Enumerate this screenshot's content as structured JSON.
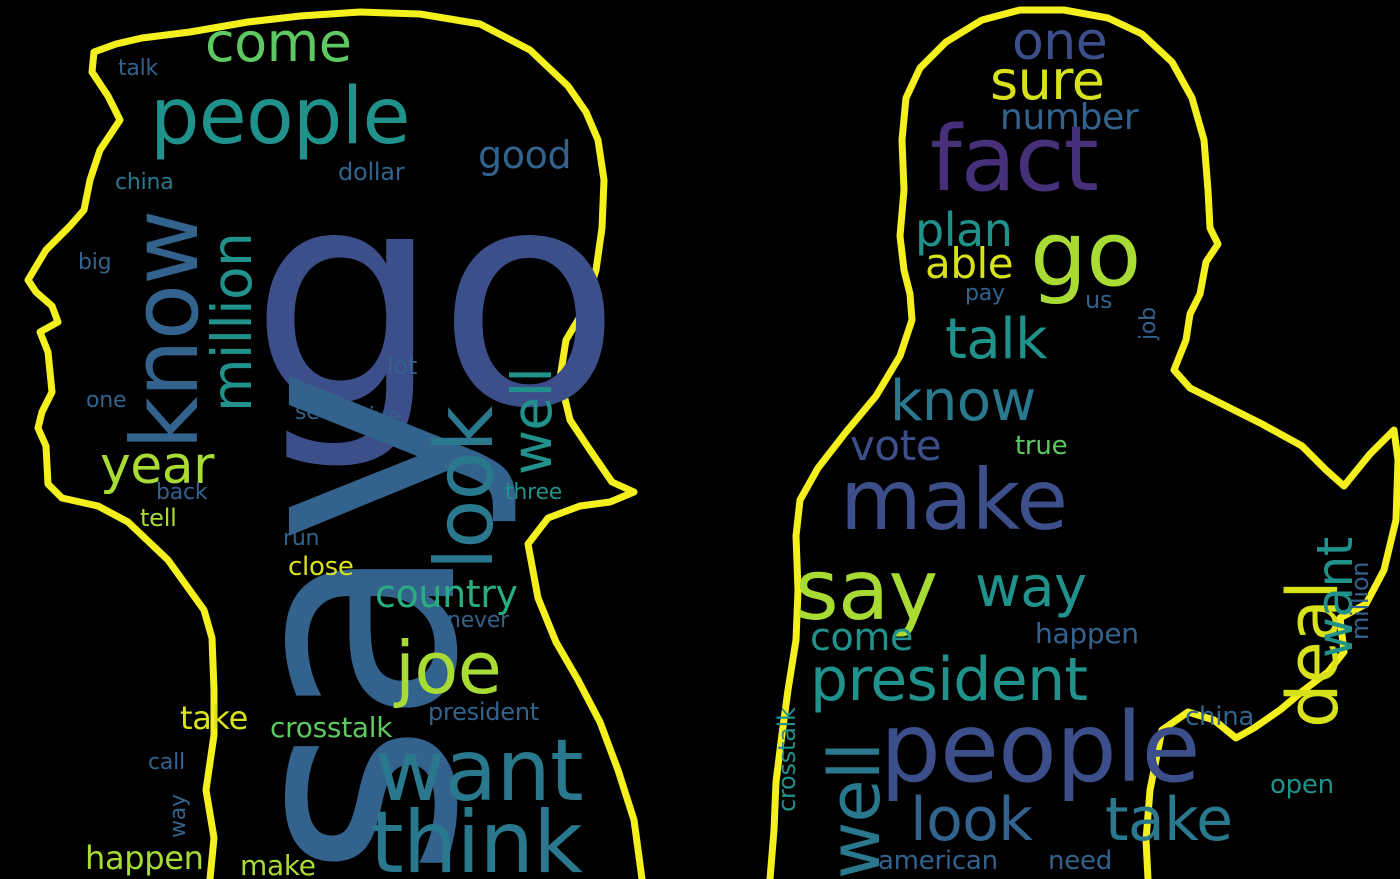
{
  "palette": {
    "background": "#000000",
    "outline": "#f3f01e",
    "viridis": [
      "#47307a",
      "#3c4f8a",
      "#33638d",
      "#2a788e",
      "#21918c",
      "#27ad81",
      "#5ec962",
      "#a8db34",
      "#d8e21a"
    ]
  },
  "left_cloud": {
    "silhouette": "trump-profile",
    "words": [
      "go",
      "say",
      "people",
      "come",
      "know",
      "million",
      "look",
      "well",
      "year",
      "joe",
      "want",
      "think",
      "country",
      "good",
      "talk",
      "china",
      "big",
      "dollar",
      "one",
      "lot",
      "see",
      "give",
      "back",
      "tell",
      "three",
      "run",
      "close",
      "never",
      "president",
      "take",
      "crosstalk",
      "call",
      "way",
      "happen",
      "make"
    ]
  },
  "right_cloud": {
    "silhouette": "biden-profile-pointing",
    "words": [
      "one",
      "sure",
      "number",
      "fact",
      "plan",
      "go",
      "able",
      "pay",
      "us",
      "job",
      "talk",
      "know",
      "vote",
      "true",
      "make",
      "say",
      "way",
      "deal",
      "want",
      "million",
      "come",
      "happen",
      "president",
      "crosstalk",
      "well",
      "people",
      "china",
      "open",
      "look",
      "take",
      "american",
      "need"
    ]
  }
}
